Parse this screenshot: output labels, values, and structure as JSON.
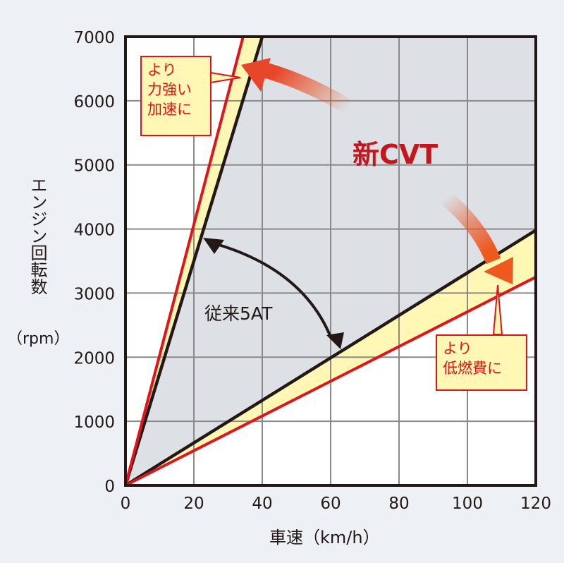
{
  "chart_data": {
    "type": "line",
    "title": "",
    "xlabel": "車速（km/h）",
    "ylabel": "エンジン回転数（rpm）",
    "xlim": [
      0,
      120
    ],
    "ylim": [
      0,
      7000
    ],
    "x_ticks": [
      "0",
      "20",
      "40",
      "60",
      "80",
      "100",
      "120"
    ],
    "y_ticks": [
      "0",
      "1000",
      "2000",
      "3000",
      "4000",
      "5000",
      "6000",
      "7000"
    ],
    "grid": true,
    "legend": null,
    "series": [
      {
        "name": "従来5AT (low gear ratio line)",
        "color": "#231815",
        "points": [
          [
            0,
            0
          ],
          [
            40,
            7000
          ]
        ]
      },
      {
        "name": "従来5AT (high gear ratio line)",
        "color": "#231815",
        "points": [
          [
            0,
            0
          ],
          [
            120,
            3980
          ]
        ]
      },
      {
        "name": "新CVT (low ratio line)",
        "color": "#e0151c",
        "points": [
          [
            0,
            0
          ],
          [
            34.4,
            7000
          ]
        ]
      },
      {
        "name": "新CVT (high ratio line)",
        "color": "#e0151c",
        "points": [
          [
            0,
            0
          ],
          [
            120,
            3250
          ]
        ]
      }
    ],
    "regions": [
      {
        "name": "従来5AT range",
        "color": "#dde1e6"
      },
      {
        "name": "新CVT extended range",
        "color": "#fff7b3"
      }
    ],
    "annotations": [
      {
        "text": "新CVT",
        "color": "#c4161c"
      },
      {
        "text": "従来5AT",
        "color": "#231815"
      },
      {
        "text": "より 力強い 加速に",
        "color": "#e0151c",
        "points_to": [
          32,
          6550
        ]
      },
      {
        "text": "より 低燃費に",
        "color": "#e0151c",
        "points_to": [
          109,
          3100
        ]
      }
    ]
  },
  "labels": {
    "ylabel_main": "エンジン回転数",
    "ylabel_unit": "（rpm）",
    "xlabel": "車速（km/h）",
    "cvt": "新CVT",
    "at": "従来5AT",
    "callout_top_line1": "より",
    "callout_top_line2": "力強い",
    "callout_top_line3": "加速に",
    "callout_bottom_line1": "より",
    "callout_bottom_line2": "低燃費に"
  },
  "colors": {
    "background": "#edf0f4",
    "plot_bg": "#ffffff",
    "at_region": "#dde1e6",
    "cvt_band": "#fff7b3",
    "red": "#e0151c",
    "black": "#231815",
    "grid": "#8a8a8a"
  }
}
